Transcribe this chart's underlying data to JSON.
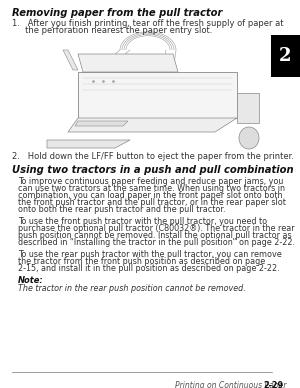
{
  "page_bg": "#ffffff",
  "title1": "Removing paper from the pull tractor",
  "step2_text": "2.   Hold down the LF/FF button to eject the paper from the printer.",
  "title2": "Using two tractors in a push and pull combination",
  "para1_lines": [
    "To improve continuous paper feeding and reduce paper jams, you",
    "can use two tractors at the same time. When using two tractors in",
    "combination, you can load paper in the front paper slot onto both",
    "the front push tractor and the pull tractor, or in the rear paper slot",
    "onto both the rear push tractor and the pull tractor."
  ],
  "para2_lines": [
    "To use the front push tractor with the pull tractor, you need to",
    "purchase the optional pull tractor (C80032®). The tractor in the rear",
    "push position cannot be removed. Install the optional pull tractor as",
    "described in “Installing the tractor in the pull position” on page 2-22."
  ],
  "para3_lines": [
    "To use the rear push tractor with the pull tractor, you can remove",
    "the tractor from the front push position as described on page",
    "2-15, and install it in the pull position as described on page 2-22."
  ],
  "note_label": "Note:",
  "note_text": "The tractor in the rear push position cannot be removed.",
  "footer_left": "Printing on Continuous Paper",
  "footer_right": "2-29",
  "tab_number": "2",
  "tab_bg": "#000000",
  "tab_fg": "#ffffff",
  "text_color": "#333333",
  "title_color": "#111111",
  "step1_line1": "1.   After you finish printing, tear off the fresh supply of paper at",
  "step1_line2": "     the perforation nearest the paper entry slot."
}
